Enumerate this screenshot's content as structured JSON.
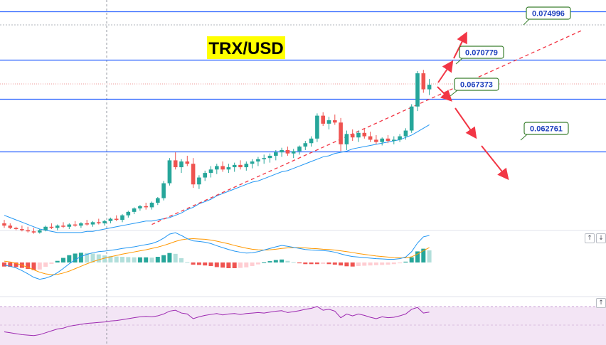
{
  "title": "TRX/USD",
  "colors": {
    "up": "#26a69a",
    "down": "#ef5350",
    "level": "#2962ff",
    "ma": "#2196f3",
    "trend": "#f23645",
    "arrow": "#f23645",
    "macd": "#2196f3",
    "signal": "#ff9800",
    "hist_up": "#26a69a",
    "hist_up_light": "#b2dfdb",
    "hist_down": "#ef5350",
    "hist_down_light": "#ffcdd2",
    "rsi": "#9c27b0",
    "rsi_band": "#f3e5f5",
    "title_bg": "#ffff00",
    "label_border": "#3a7f2e",
    "label_text": "#1c3fbd"
  },
  "icons": {
    "pane_up": "↑",
    "pane_down": "↓",
    "pane_up_glyph": "↑"
  },
  "chart_data": {
    "type": "candlestick",
    "y_range": [
      0.056,
      0.076
    ],
    "levels": [
      {
        "value": 0.074996,
        "label": "0.074996"
      },
      {
        "value": 0.070779,
        "label": "0.070779"
      },
      {
        "value": 0.067373,
        "label": "0.067373"
      },
      {
        "value": 0.062761,
        "label": "0.062761"
      }
    ],
    "candles": [
      [
        0.0565,
        0.0568,
        0.0561,
        0.0563
      ],
      [
        0.0563,
        0.0565,
        0.056,
        0.0561
      ],
      [
        0.0561,
        0.0562,
        0.0559,
        0.056
      ],
      [
        0.056,
        0.0563,
        0.0558,
        0.0559
      ],
      [
        0.0559,
        0.0562,
        0.0557,
        0.0558
      ],
      [
        0.0558,
        0.0561,
        0.0556,
        0.0557
      ],
      [
        0.0557,
        0.056,
        0.0556,
        0.0559
      ],
      [
        0.0559,
        0.0563,
        0.0558,
        0.0562
      ],
      [
        0.0562,
        0.0565,
        0.056,
        0.0561
      ],
      [
        0.0561,
        0.0564,
        0.0559,
        0.0563
      ],
      [
        0.0563,
        0.0566,
        0.0561,
        0.0562
      ],
      [
        0.0562,
        0.0565,
        0.056,
        0.0564
      ],
      [
        0.0564,
        0.0567,
        0.0562,
        0.0563
      ],
      [
        0.0563,
        0.0566,
        0.0561,
        0.0565
      ],
      [
        0.0565,
        0.0568,
        0.0563,
        0.0564
      ],
      [
        0.0564,
        0.0567,
        0.0562,
        0.0566
      ],
      [
        0.0566,
        0.0569,
        0.0564,
        0.0565
      ],
      [
        0.0565,
        0.0568,
        0.0563,
        0.0567
      ],
      [
        0.0567,
        0.057,
        0.0565,
        0.0569
      ],
      [
        0.0569,
        0.0572,
        0.0567,
        0.0568
      ],
      [
        0.0568,
        0.0573,
        0.0566,
        0.0572
      ],
      [
        0.0572,
        0.0576,
        0.057,
        0.0575
      ],
      [
        0.0575,
        0.0579,
        0.0573,
        0.0578
      ],
      [
        0.0578,
        0.0581,
        0.0576,
        0.058
      ],
      [
        0.058,
        0.0583,
        0.0577,
        0.0579
      ],
      [
        0.0579,
        0.0584,
        0.0577,
        0.0583
      ],
      [
        0.0583,
        0.0588,
        0.0581,
        0.0587
      ],
      [
        0.0587,
        0.0602,
        0.0585,
        0.06
      ],
      [
        0.06,
        0.0622,
        0.0598,
        0.062
      ],
      [
        0.062,
        0.0627,
        0.0612,
        0.0614
      ],
      [
        0.0614,
        0.0621,
        0.0609,
        0.0619
      ],
      [
        0.0619,
        0.0624,
        0.0615,
        0.0617
      ],
      [
        0.0617,
        0.0622,
        0.0596,
        0.0599
      ],
      [
        0.0599,
        0.0607,
        0.0595,
        0.0605
      ],
      [
        0.0605,
        0.0611,
        0.0602,
        0.0609
      ],
      [
        0.0609,
        0.0615,
        0.0605,
        0.0612
      ],
      [
        0.0612,
        0.0617,
        0.0608,
        0.0615
      ],
      [
        0.0615,
        0.0619,
        0.061,
        0.0612
      ],
      [
        0.0612,
        0.0617,
        0.0609,
        0.0614
      ],
      [
        0.0614,
        0.0618,
        0.061,
        0.0616
      ],
      [
        0.0616,
        0.062,
        0.0612,
        0.0614
      ],
      [
        0.0614,
        0.0619,
        0.0611,
        0.0617
      ],
      [
        0.0617,
        0.0621,
        0.0613,
        0.0619
      ],
      [
        0.0619,
        0.0623,
        0.0615,
        0.0621
      ],
      [
        0.0621,
        0.0625,
        0.0617,
        0.0622
      ],
      [
        0.0622,
        0.0626,
        0.0618,
        0.0624
      ],
      [
        0.0624,
        0.0629,
        0.062,
        0.0627
      ],
      [
        0.0627,
        0.0631,
        0.0623,
        0.0629
      ],
      [
        0.0629,
        0.0632,
        0.0624,
        0.0626
      ],
      [
        0.0626,
        0.063,
        0.0622,
        0.0628
      ],
      [
        0.0628,
        0.0633,
        0.0625,
        0.0632
      ],
      [
        0.0632,
        0.0637,
        0.0629,
        0.0635
      ],
      [
        0.0635,
        0.0641,
        0.0632,
        0.0639
      ],
      [
        0.0639,
        0.0661,
        0.0636,
        0.0659
      ],
      [
        0.0659,
        0.0662,
        0.065,
        0.0652
      ],
      [
        0.0652,
        0.0658,
        0.0647,
        0.0655
      ],
      [
        0.0655,
        0.066,
        0.0651,
        0.0653
      ],
      [
        0.0653,
        0.0657,
        0.0628,
        0.0634
      ],
      [
        0.0634,
        0.0646,
        0.0629,
        0.0643
      ],
      [
        0.0643,
        0.0647,
        0.0637,
        0.064
      ],
      [
        0.064,
        0.0646,
        0.0636,
        0.0644
      ],
      [
        0.0644,
        0.0648,
        0.0639,
        0.0641
      ],
      [
        0.0641,
        0.0645,
        0.0636,
        0.0638
      ],
      [
        0.0638,
        0.0642,
        0.0634,
        0.0636
      ],
      [
        0.0636,
        0.064,
        0.0633,
        0.0639
      ],
      [
        0.0639,
        0.0642,
        0.0635,
        0.0637
      ],
      [
        0.0637,
        0.0641,
        0.0634,
        0.0638
      ],
      [
        0.0638,
        0.0643,
        0.0636,
        0.0641
      ],
      [
        0.0641,
        0.0648,
        0.0638,
        0.0646
      ],
      [
        0.0646,
        0.0669,
        0.0644,
        0.0667
      ],
      [
        0.0667,
        0.0698,
        0.0663,
        0.0696
      ],
      [
        0.0696,
        0.0699,
        0.0679,
        0.0682
      ],
      [
        0.0682,
        0.0691,
        0.0677,
        0.0686
      ]
    ],
    "ma": [
      0.0572,
      0.057,
      0.0568,
      0.0566,
      0.0564,
      0.0562,
      0.056,
      0.0559,
      0.0558,
      0.0557,
      0.0557,
      0.0557,
      0.0557,
      0.0557,
      0.0558,
      0.0558,
      0.0559,
      0.056,
      0.0561,
      0.0562,
      0.0563,
      0.0564,
      0.0565,
      0.0566,
      0.0567,
      0.0567,
      0.0568,
      0.0569,
      0.057,
      0.0572,
      0.0574,
      0.0577,
      0.0579,
      0.0582,
      0.0584,
      0.0586,
      0.0589,
      0.0591,
      0.0593,
      0.0595,
      0.0597,
      0.0599,
      0.0601,
      0.0602,
      0.0604,
      0.0606,
      0.0608,
      0.061,
      0.0611,
      0.0613,
      0.0615,
      0.0617,
      0.0619,
      0.0621,
      0.0623,
      0.0624,
      0.0626,
      0.0627,
      0.0628,
      0.063,
      0.0631,
      0.0632,
      0.0633,
      0.0634,
      0.0635,
      0.0636,
      0.0637,
      0.0638,
      0.064,
      0.0642,
      0.0645,
      0.0648,
      0.0651
    ],
    "macd": [
      -0.1,
      -0.14,
      -0.2,
      -0.3,
      -0.42,
      -0.55,
      -0.62,
      -0.58,
      -0.5,
      -0.38,
      -0.22,
      -0.05,
      0.1,
      0.22,
      0.3,
      0.36,
      0.4,
      0.42,
      0.45,
      0.48,
      0.52,
      0.55,
      0.58,
      0.62,
      0.66,
      0.7,
      0.78,
      0.9,
      1.05,
      1.1,
      1.0,
      0.88,
      0.8,
      0.78,
      0.75,
      0.7,
      0.62,
      0.55,
      0.48,
      0.42,
      0.38,
      0.35,
      0.36,
      0.4,
      0.46,
      0.52,
      0.58,
      0.63,
      0.6,
      0.56,
      0.52,
      0.48,
      0.46,
      0.45,
      0.44,
      0.42,
      0.38,
      0.32,
      0.26,
      0.22,
      0.2,
      0.18,
      0.16,
      0.14,
      0.13,
      0.12,
      0.12,
      0.14,
      0.2,
      0.4,
      0.72,
      0.95,
      1.0
    ],
    "signal": [
      0.05,
      0.02,
      -0.03,
      -0.1,
      -0.18,
      -0.27,
      -0.36,
      -0.42,
      -0.45,
      -0.44,
      -0.39,
      -0.32,
      -0.23,
      -0.14,
      -0.05,
      0.03,
      0.1,
      0.16,
      0.21,
      0.26,
      0.31,
      0.35,
      0.39,
      0.43,
      0.47,
      0.52,
      0.57,
      0.63,
      0.7,
      0.78,
      0.84,
      0.87,
      0.88,
      0.87,
      0.86,
      0.83,
      0.79,
      0.74,
      0.69,
      0.63,
      0.58,
      0.53,
      0.49,
      0.47,
      0.46,
      0.47,
      0.49,
      0.52,
      0.54,
      0.55,
      0.55,
      0.54,
      0.52,
      0.51,
      0.49,
      0.48,
      0.46,
      0.43,
      0.4,
      0.37,
      0.33,
      0.3,
      0.27,
      0.24,
      0.22,
      0.2,
      0.18,
      0.17,
      0.17,
      0.21,
      0.31,
      0.44,
      0.55
    ],
    "hist": [
      -0.15,
      -0.16,
      -0.17,
      -0.2,
      -0.24,
      -0.28,
      -0.26,
      -0.16,
      -0.05,
      0.06,
      0.17,
      0.27,
      0.33,
      0.36,
      0.35,
      0.33,
      0.3,
      0.26,
      0.24,
      0.22,
      0.21,
      0.2,
      0.19,
      0.19,
      0.19,
      0.18,
      0.21,
      0.27,
      0.35,
      0.32,
      0.16,
      0.01,
      -0.08,
      -0.09,
      -0.11,
      -0.13,
      -0.17,
      -0.19,
      -0.21,
      -0.21,
      -0.2,
      -0.18,
      -0.13,
      -0.07,
      0.0,
      0.05,
      0.09,
      0.11,
      0.06,
      0.01,
      -0.03,
      -0.06,
      -0.06,
      -0.06,
      -0.05,
      -0.06,
      -0.08,
      -0.11,
      -0.14,
      -0.15,
      -0.13,
      -0.12,
      -0.11,
      -0.1,
      -0.09,
      -0.08,
      -0.06,
      -0.03,
      0.03,
      0.19,
      0.41,
      0.51,
      0.45
    ],
    "rsi": [
      22,
      20,
      18,
      16,
      15,
      14,
      16,
      20,
      24,
      28,
      30,
      34,
      36,
      38,
      40,
      41,
      42,
      43,
      45,
      46,
      48,
      50,
      52,
      54,
      55,
      54,
      56,
      60,
      66,
      68,
      62,
      60,
      50,
      54,
      57,
      59,
      61,
      58,
      60,
      61,
      59,
      61,
      62,
      63,
      62,
      64,
      66,
      67,
      63,
      65,
      67,
      70,
      72,
      76,
      68,
      70,
      66,
      52,
      60,
      56,
      60,
      57,
      53,
      50,
      54,
      52,
      53,
      56,
      60,
      70,
      74,
      62,
      64
    ]
  }
}
